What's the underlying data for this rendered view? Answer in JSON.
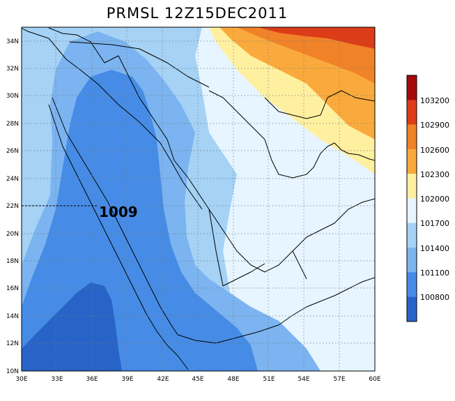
{
  "map": {
    "title": "PRMSL 12Z15DEC2011",
    "annotation": "1009",
    "lon_labels": [
      "30E",
      "33E",
      "36E",
      "39E",
      "42E",
      "45E",
      "48E",
      "51E",
      "54E",
      "57E",
      "60E"
    ],
    "lat_labels": [
      "10N",
      "12N",
      "14N",
      "16N",
      "18N",
      "20N",
      "22N",
      "24N",
      "26N",
      "28N",
      "30N",
      "32N",
      "34N"
    ]
  },
  "colorbar": {
    "labels": [
      "103200",
      "102900",
      "102600",
      "102300",
      "102000",
      "101700",
      "101400",
      "101100",
      "100800"
    ],
    "colors": [
      "#a50a0a",
      "#dc3c18",
      "#f08228",
      "#faaa3c",
      "#fff0a0",
      "#e6f5ff",
      "#a5d2f5",
      "#7bb4f0",
      "#468ce6",
      "#2864c8"
    ]
  }
}
